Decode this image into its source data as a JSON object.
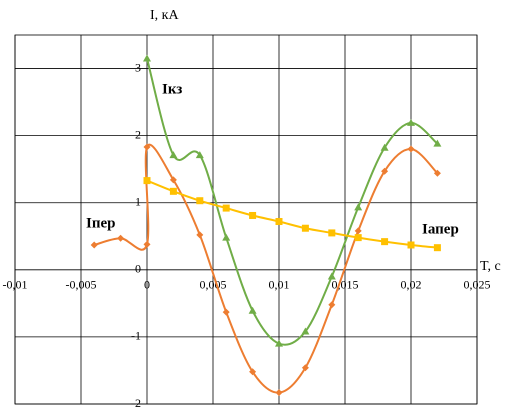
{
  "chart_data": {
    "type": "line",
    "x_label": "T, с",
    "y_label": "I, кА",
    "xlim": [
      -0.01,
      0.025
    ],
    "xticks": [
      {
        "value": -0.01,
        "label": "-0,01"
      },
      {
        "value": -0.005,
        "label": "-0,005"
      },
      0,
      {
        "value": 0.005,
        "label": "0,005"
      },
      {
        "value": 0.01,
        "label": "0,01"
      },
      {
        "value": 0.015,
        "label": "0,015"
      },
      {
        "value": 0.02,
        "label": "0,02"
      },
      {
        "value": 0.025,
        "label": "0,025"
      }
    ],
    "ylim": [
      -2,
      3.5
    ],
    "yticks": [
      -2,
      -1,
      0,
      1,
      2,
      3
    ],
    "grid": true,
    "series": [
      {
        "name": "Iпер",
        "color": "#ed7d31",
        "marker": "diamond",
        "x": [
          -0.004,
          -0.002,
          0,
          0,
          0.002,
          0.004,
          0.006,
          0.008,
          0.01,
          0.012,
          0.014,
          0.016,
          0.018,
          0.02,
          0.022
        ],
        "values": [
          0.37,
          0.47,
          0.38,
          1.83,
          1.34,
          0.52,
          -0.63,
          -1.52,
          -1.83,
          -1.46,
          -0.52,
          0.58,
          1.47,
          1.8,
          1.44
        ]
      },
      {
        "name": "Iкз",
        "color": "#70ad47",
        "marker": "triangle",
        "x": [
          0,
          0.002,
          0.004,
          0.006,
          0.008,
          0.01,
          0.012,
          0.014,
          0.016,
          0.018,
          0.02,
          0.022
        ],
        "values": [
          3.15,
          1.71,
          1.71,
          0.48,
          -0.61,
          -1.1,
          -0.92,
          -0.1,
          0.93,
          1.82,
          2.19,
          1.88
        ]
      },
      {
        "name": "Iапер",
        "color": "#ffc000",
        "marker": "square",
        "x": [
          0,
          0.002,
          0.004,
          0.006,
          0.008,
          0.01,
          0.012,
          0.014,
          0.016,
          0.018,
          0.02,
          0.022
        ],
        "values": [
          1.33,
          1.17,
          1.03,
          0.92,
          0.81,
          0.72,
          0.62,
          0.55,
          0.48,
          0.42,
          0.37,
          0.33
        ]
      }
    ]
  }
}
